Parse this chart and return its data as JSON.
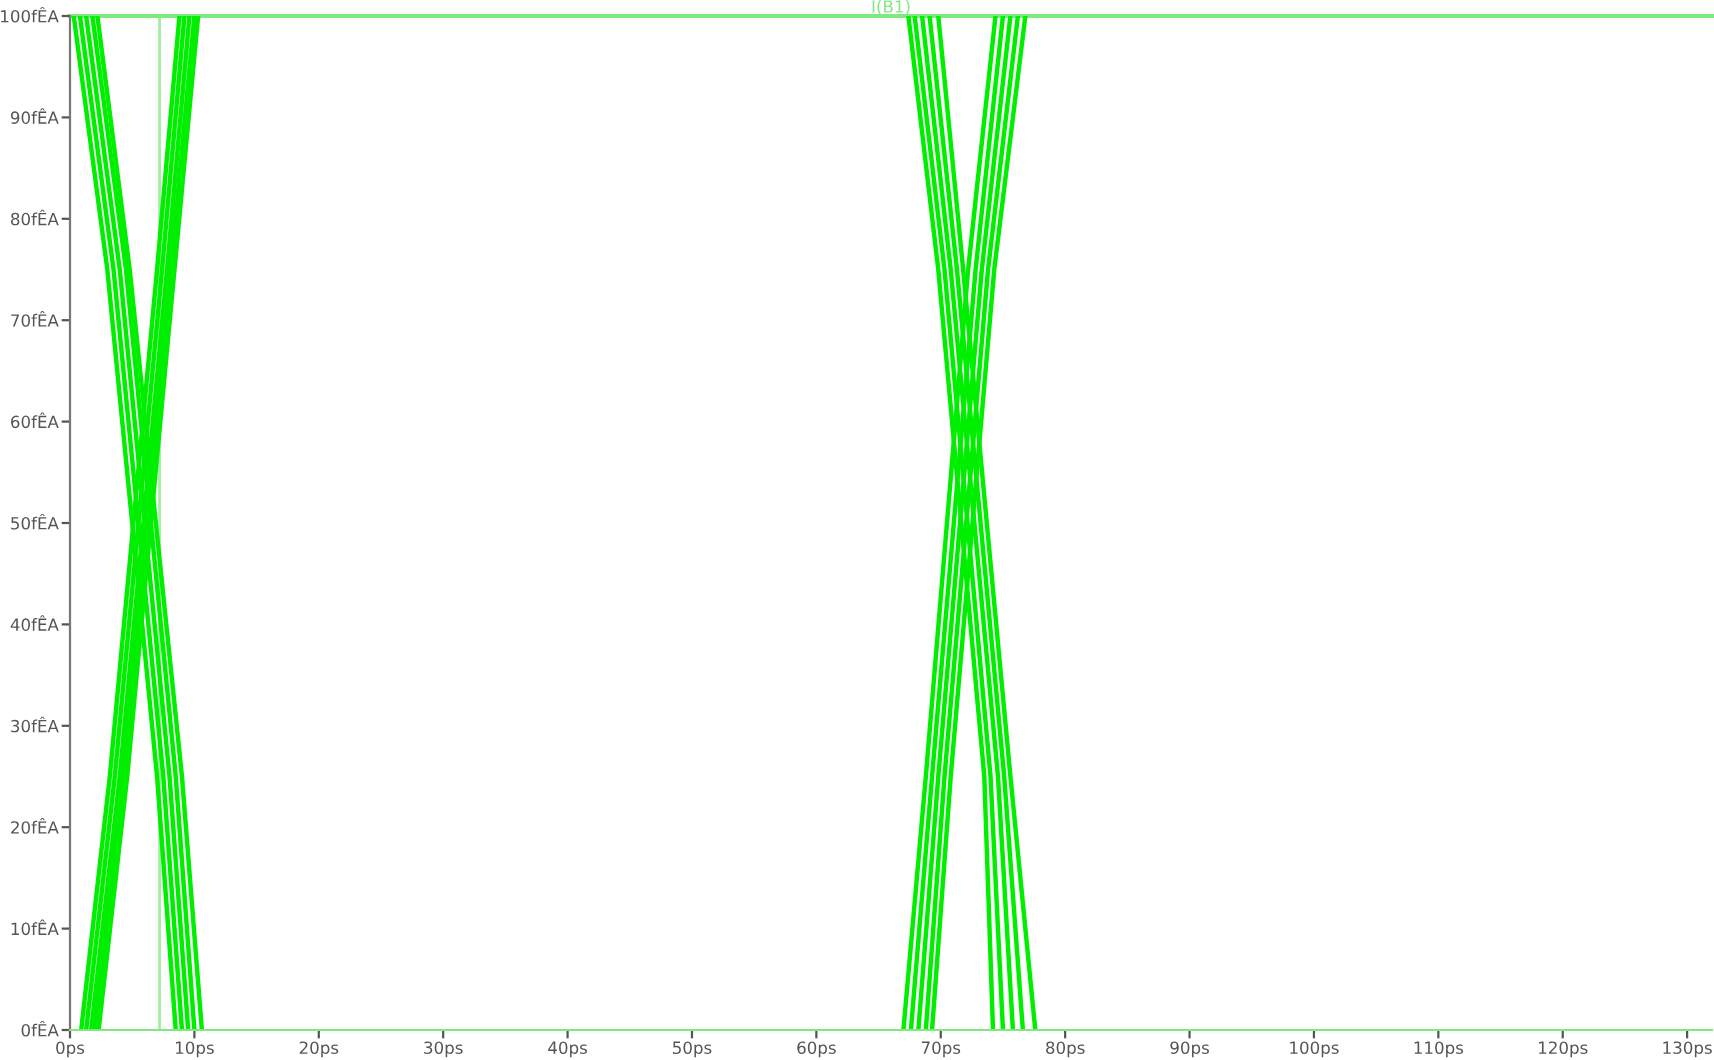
{
  "chart_data": {
    "type": "line",
    "title": "I(B1)",
    "line_style": "solid",
    "marker": "none",
    "grid": false,
    "xlim": [
      0,
      132
    ],
    "ylim": [
      0,
      100
    ],
    "xticks": [
      {
        "value": 0,
        "label": "0ps"
      },
      {
        "value": 10,
        "label": "10ps"
      },
      {
        "value": 20,
        "label": "20ps"
      },
      {
        "value": 30,
        "label": "30ps"
      },
      {
        "value": 40,
        "label": "40ps"
      },
      {
        "value": 50,
        "label": "50ps"
      },
      {
        "value": 60,
        "label": "60ps"
      },
      {
        "value": 70,
        "label": "70ps"
      },
      {
        "value": 80,
        "label": "80ps"
      },
      {
        "value": 90,
        "label": "90ps"
      },
      {
        "value": 100,
        "label": "100ps"
      },
      {
        "value": 110,
        "label": "110ps"
      },
      {
        "value": 120,
        "label": "120ps"
      },
      {
        "value": 130,
        "label": "130ps"
      }
    ],
    "yticks": [
      {
        "value": 0,
        "label": "0fÊA"
      },
      {
        "value": 10,
        "label": "10fÊA"
      },
      {
        "value": 20,
        "label": "20fÊA"
      },
      {
        "value": 30,
        "label": "30fÊA"
      },
      {
        "value": 40,
        "label": "40fÊA"
      },
      {
        "value": 50,
        "label": "50fÊA"
      },
      {
        "value": 60,
        "label": "60fÊA"
      },
      {
        "value": 70,
        "label": "70fÊA"
      },
      {
        "value": 80,
        "label": "80fÊA"
      },
      {
        "value": 90,
        "label": "90fÊA"
      },
      {
        "value": 100,
        "label": "100fÊA"
      }
    ],
    "ref_lines": [
      {
        "axis": "x",
        "value": 7.2,
        "color": "#a0f0a0"
      },
      {
        "axis": "y",
        "value": 100,
        "color": "#80e880"
      }
    ],
    "series": [
      {
        "color": "#00ee00",
        "x": [
          0.3,
          3.0,
          7.0,
          8.5
        ],
        "values": [
          100,
          75,
          25,
          0
        ]
      },
      {
        "color": "#00ee00",
        "x": [
          0.8,
          3.5,
          7.5,
          9.0
        ],
        "values": [
          100,
          75,
          25,
          0
        ]
      },
      {
        "color": "#00ee00",
        "x": [
          1.3,
          4.0,
          8.0,
          9.5
        ],
        "values": [
          100,
          75,
          25,
          0
        ]
      },
      {
        "color": "#00ee00",
        "x": [
          1.8,
          4.5,
          8.5,
          10.0
        ],
        "values": [
          100,
          75,
          25,
          0
        ]
      },
      {
        "color": "#00ee00",
        "x": [
          2.2,
          4.8,
          9.0,
          10.6
        ],
        "values": [
          100,
          75,
          25,
          0
        ]
      },
      {
        "color": "#00ee00",
        "x": [
          0.9,
          3.2,
          7.0,
          8.8
        ],
        "values": [
          0,
          25,
          75,
          100
        ]
      },
      {
        "color": "#00ee00",
        "x": [
          1.3,
          3.6,
          7.4,
          9.2
        ],
        "values": [
          0,
          25,
          75,
          100
        ]
      },
      {
        "color": "#00ee00",
        "x": [
          1.7,
          4.0,
          7.8,
          9.6
        ],
        "values": [
          0,
          25,
          75,
          100
        ]
      },
      {
        "color": "#00ee00",
        "x": [
          2.0,
          4.3,
          8.1,
          10.0
        ],
        "values": [
          0,
          25,
          75,
          100
        ]
      },
      {
        "color": "#00ee00",
        "x": [
          2.3,
          4.6,
          8.4,
          10.3
        ],
        "values": [
          0,
          25,
          75,
          100
        ]
      },
      {
        "color": "#00ee00",
        "x": [
          67.4,
          69.8,
          73.5,
          74.2
        ],
        "values": [
          100,
          75,
          25,
          0
        ]
      },
      {
        "color": "#00ee00",
        "x": [
          67.9,
          70.3,
          74.0,
          75.0
        ],
        "values": [
          100,
          75,
          25,
          0
        ]
      },
      {
        "color": "#00ee00",
        "x": [
          68.5,
          70.8,
          74.6,
          75.8
        ],
        "values": [
          100,
          75,
          25,
          0
        ]
      },
      {
        "color": "#00ee00",
        "x": [
          69.1,
          71.3,
          75.1,
          76.6
        ],
        "values": [
          100,
          75,
          25,
          0
        ]
      },
      {
        "color": "#00ee00",
        "x": [
          69.8,
          71.8,
          75.6,
          77.6
        ],
        "values": [
          100,
          75,
          25,
          0
        ]
      },
      {
        "color": "#00ee00",
        "x": [
          67.0,
          68.8,
          72.2,
          74.4
        ],
        "values": [
          0,
          25,
          75,
          100
        ]
      },
      {
        "color": "#00ee00",
        "x": [
          67.6,
          69.3,
          72.8,
          75.0
        ],
        "values": [
          0,
          25,
          75,
          100
        ]
      },
      {
        "color": "#00ee00",
        "x": [
          68.2,
          69.8,
          73.3,
          75.6
        ],
        "values": [
          0,
          25,
          75,
          100
        ]
      },
      {
        "color": "#00ee00",
        "x": [
          68.8,
          70.3,
          73.8,
          76.2
        ],
        "values": [
          0,
          25,
          75,
          100
        ]
      },
      {
        "color": "#00ee00",
        "x": [
          69.3,
          70.8,
          74.3,
          76.8
        ],
        "values": [
          0,
          25,
          75,
          100
        ]
      }
    ]
  }
}
